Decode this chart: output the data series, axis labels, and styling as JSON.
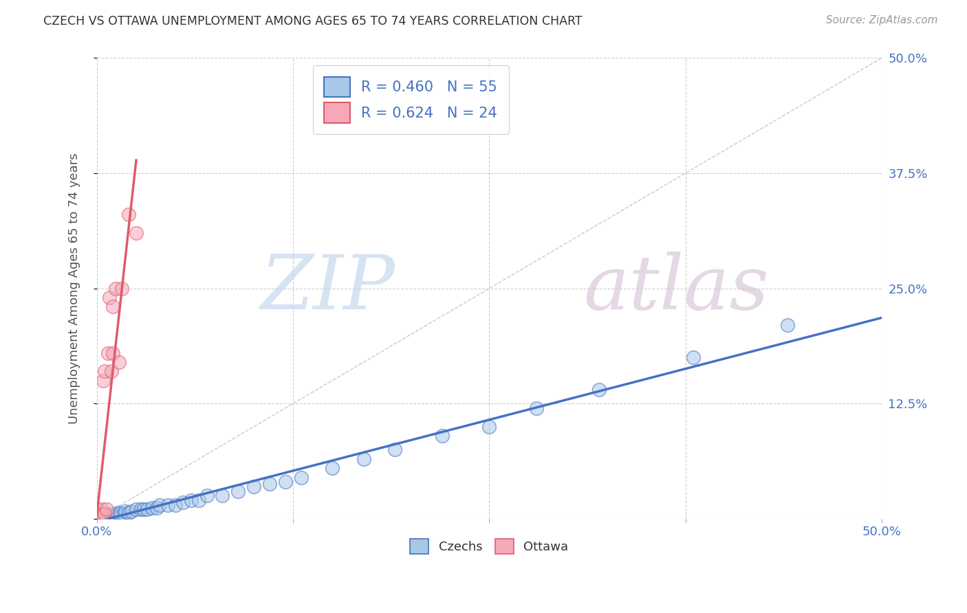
{
  "title": "CZECH VS OTTAWA UNEMPLOYMENT AMONG AGES 65 TO 74 YEARS CORRELATION CHART",
  "source": "Source: ZipAtlas.com",
  "ylabel": "Unemployment Among Ages 65 to 74 years",
  "xlim": [
    0,
    0.5
  ],
  "ylim": [
    0,
    0.5
  ],
  "xticks": [
    0.0,
    0.125,
    0.25,
    0.375,
    0.5
  ],
  "yticks": [
    0.0,
    0.125,
    0.25,
    0.375,
    0.5
  ],
  "xticklabels": [
    "0.0%",
    "",
    "",
    "",
    "50.0%"
  ],
  "yticklabels_right": [
    "",
    "12.5%",
    "25.0%",
    "37.5%",
    "50.0%"
  ],
  "czechs_R": 0.46,
  "czechs_N": 55,
  "ottawa_R": 0.624,
  "ottawa_N": 24,
  "czechs_color": "#a8c8e8",
  "ottawa_color": "#f4a8b8",
  "czechs_line_color": "#4472c4",
  "ottawa_line_color": "#e05a6a",
  "czechs_x": [
    0.0,
    0.0,
    0.0,
    0.0,
    0.0,
    0.002,
    0.002,
    0.003,
    0.005,
    0.005,
    0.005,
    0.005,
    0.007,
    0.007,
    0.008,
    0.01,
    0.01,
    0.01,
    0.012,
    0.012,
    0.013,
    0.015,
    0.015,
    0.017,
    0.018,
    0.02,
    0.022,
    0.025,
    0.028,
    0.03,
    0.032,
    0.035,
    0.038,
    0.04,
    0.045,
    0.05,
    0.055,
    0.06,
    0.065,
    0.07,
    0.08,
    0.09,
    0.1,
    0.11,
    0.12,
    0.13,
    0.15,
    0.17,
    0.19,
    0.22,
    0.25,
    0.28,
    0.32,
    0.38,
    0.44
  ],
  "czechs_y": [
    0.0,
    0.0,
    0.002,
    0.003,
    0.005,
    0.0,
    0.002,
    0.0,
    0.0,
    0.001,
    0.003,
    0.005,
    0.0,
    0.002,
    0.004,
    0.0,
    0.002,
    0.005,
    0.002,
    0.004,
    0.007,
    0.003,
    0.006,
    0.005,
    0.008,
    0.007,
    0.008,
    0.01,
    0.01,
    0.01,
    0.01,
    0.012,
    0.012,
    0.015,
    0.015,
    0.015,
    0.018,
    0.02,
    0.02,
    0.025,
    0.025,
    0.03,
    0.035,
    0.038,
    0.04,
    0.045,
    0.055,
    0.065,
    0.075,
    0.09,
    0.1,
    0.12,
    0.14,
    0.175,
    0.21
  ],
  "ottawa_x": [
    0.0,
    0.0,
    0.0,
    0.0,
    0.001,
    0.001,
    0.002,
    0.003,
    0.003,
    0.004,
    0.004,
    0.005,
    0.005,
    0.006,
    0.007,
    0.008,
    0.009,
    0.01,
    0.01,
    0.012,
    0.014,
    0.016,
    0.02,
    0.025
  ],
  "ottawa_y": [
    0.0,
    0.0,
    0.005,
    0.01,
    0.0,
    0.002,
    0.003,
    0.005,
    0.01,
    0.005,
    0.15,
    0.005,
    0.16,
    0.01,
    0.18,
    0.24,
    0.16,
    0.18,
    0.23,
    0.25,
    0.17,
    0.25,
    0.33,
    0.31
  ],
  "background_color": "#ffffff",
  "grid_color": "#cccccc",
  "dot_size": 200,
  "dot_alpha": 0.55,
  "dot_linewidth": 1.2
}
